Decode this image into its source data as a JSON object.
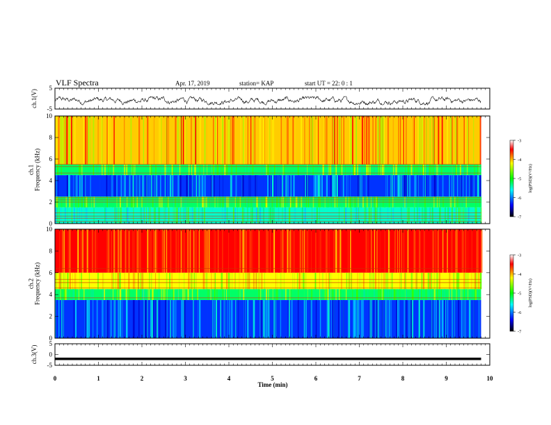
{
  "header": {
    "title": "VLF Spectra",
    "date": "Apr. 17, 2019",
    "station": "station= KAP",
    "start": "start  UT =   22: 0  : 1"
  },
  "chart_data": [
    {
      "type": "line",
      "ylabel": "ch.1(V)",
      "yticks": [
        "5",
        "-5"
      ],
      "ylim": [
        -5,
        5
      ],
      "xlim": [
        0,
        10
      ],
      "data_extent_x": [
        0,
        9.8
      ],
      "approx_level": -1,
      "approx_noise_range": [
        -3,
        1
      ],
      "color": "#000000"
    },
    {
      "type": "heatmap",
      "ylabel": "ch.1\nFrequency (kHz)",
      "ylabel_lines": [
        "ch.1",
        "Frequency (kHz)"
      ],
      "yticks": [
        "0",
        "2",
        "4",
        "6",
        "8",
        "10"
      ],
      "ylim": [
        0,
        10
      ],
      "xlim": [
        0,
        10
      ],
      "data_extent_x": [
        0,
        9.8
      ],
      "colorbar": {
        "label": "log(PSD)(V²/Hz)",
        "ticks": [
          "-3",
          "-4",
          "-5",
          "-6",
          "-7"
        ],
        "range": [
          -7,
          -3
        ]
      },
      "bands": [
        {
          "f_range": [
            5.5,
            10
          ],
          "level": "high",
          "color": "yellow-red"
        },
        {
          "f_range": [
            4.5,
            5.5
          ],
          "level": "mid",
          "color": "green"
        },
        {
          "f_range": [
            2.5,
            4.5
          ],
          "level": "low",
          "color": "blue-cyan"
        },
        {
          "f_range": [
            1.5,
            2.5
          ],
          "level": "mid",
          "color": "green"
        },
        {
          "f_range": [
            0,
            1.5
          ],
          "level": "mid-low",
          "color": "cyan-green"
        }
      ],
      "horizontal_lines_khz": [
        0.2,
        0.5,
        0.7,
        1.0,
        2.0,
        2.2,
        2.4,
        4.7,
        5.3,
        5.5
      ]
    },
    {
      "type": "heatmap",
      "ylabel": "ch.2\nFrequency (kHz)",
      "ylabel_lines": [
        "ch.2",
        "Frequency (kHz)"
      ],
      "yticks": [
        "0",
        "2",
        "4",
        "6",
        "8",
        "10"
      ],
      "ylim": [
        0,
        10
      ],
      "xlim": [
        0,
        10
      ],
      "data_extent_x": [
        0,
        9.8
      ],
      "colorbar": {
        "label": "log(PSD)(V²/Hz)",
        "ticks": [
          "-3",
          "-4",
          "-5",
          "-6",
          "-7"
        ],
        "range": [
          -7,
          -3
        ]
      },
      "bands": [
        {
          "f_range": [
            6.0,
            10
          ],
          "level": "high",
          "color": "red"
        },
        {
          "f_range": [
            4.5,
            6.0
          ],
          "level": "mid-high",
          "color": "yellow-green"
        },
        {
          "f_range": [
            3.5,
            4.5
          ],
          "level": "mid",
          "color": "green"
        },
        {
          "f_range": [
            0,
            3.5
          ],
          "level": "low",
          "color": "blue-cyan"
        }
      ],
      "horizontal_lines_khz": [
        3.7,
        4.6,
        5.1,
        5.4,
        6.4
      ]
    },
    {
      "type": "line",
      "ylabel": "ch.3(V)",
      "yticks": [
        "5",
        "0",
        "-5"
      ],
      "ylim": [
        -5,
        5
      ],
      "xlim": [
        0,
        10
      ],
      "data_extent_x": [
        0,
        9.8
      ],
      "level": -2,
      "color": "#000000"
    }
  ],
  "xaxis": {
    "label": "Time  (min)",
    "ticks": [
      "0",
      "1",
      "2",
      "3",
      "4",
      "5",
      "6",
      "7",
      "8",
      "9",
      "10"
    ],
    "range": [
      0,
      10
    ]
  },
  "colormap": [
    "#000000",
    "#0000ff",
    "#00ffff",
    "#00ff00",
    "#ffff00",
    "#ff0000",
    "#ffffff"
  ]
}
